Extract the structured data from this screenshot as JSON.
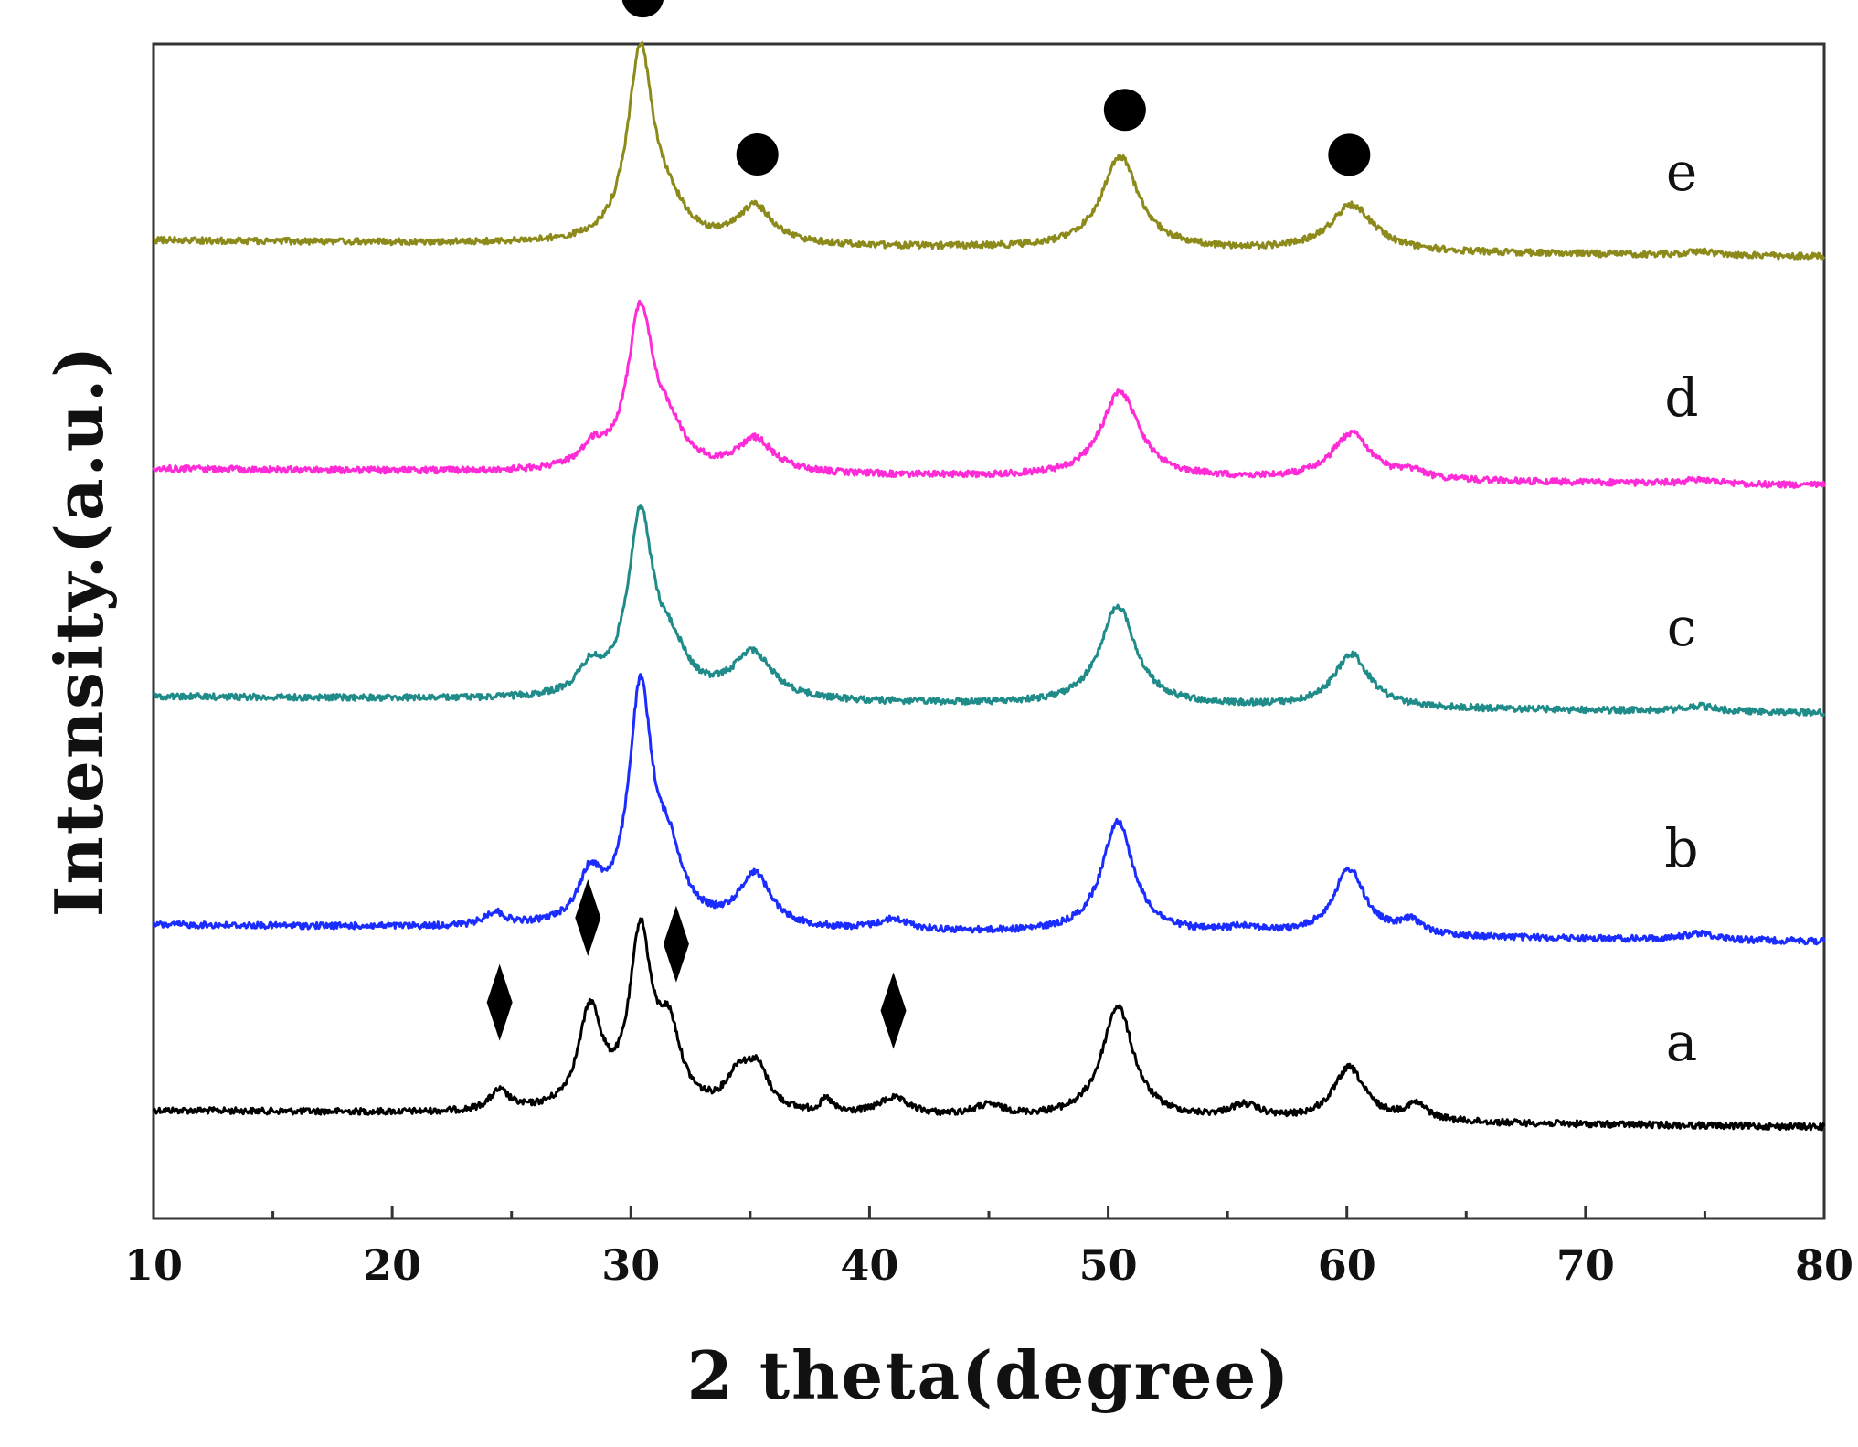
{
  "chart_data": {
    "type": "line",
    "xlabel": "2 theta(degree)",
    "ylabel": "Intensity.(a.u.)",
    "xlim": [
      10,
      80
    ],
    "xticks": [
      "10",
      "20",
      "30",
      "40",
      "50",
      "60",
      "70",
      "80"
    ],
    "grid": false,
    "legend": "none",
    "series": [
      {
        "name": "a",
        "color": "#000000",
        "baseline": 0.0,
        "peaks": [
          [
            24.5,
            0.015,
            0.5
          ],
          [
            28.3,
            0.075,
            0.6
          ],
          [
            30.4,
            0.13,
            0.55
          ],
          [
            31.6,
            0.055,
            0.6
          ],
          [
            34.5,
            0.025,
            0.6
          ],
          [
            35.3,
            0.03,
            0.6
          ],
          [
            38.2,
            0.01,
            0.3
          ],
          [
            41.0,
            0.013,
            0.8
          ],
          [
            45.0,
            0.008,
            0.8
          ],
          [
            50.4,
            0.085,
            0.8
          ],
          [
            55.7,
            0.01,
            0.8
          ],
          [
            60.1,
            0.04,
            0.8
          ],
          [
            62.9,
            0.012,
            0.6
          ]
        ]
      },
      {
        "name": "b",
        "color": "#1a2cff",
        "baseline": 1.0,
        "peaks": [
          [
            24.3,
            0.01,
            0.5
          ],
          [
            28.3,
            0.035,
            0.6
          ],
          [
            30.4,
            0.175,
            0.6
          ],
          [
            31.6,
            0.045,
            0.7
          ],
          [
            35.2,
            0.04,
            0.8
          ],
          [
            41.0,
            0.008,
            0.8
          ],
          [
            50.4,
            0.085,
            0.8
          ],
          [
            55.7,
            0.005,
            0.8
          ],
          [
            60.1,
            0.05,
            0.8
          ],
          [
            62.7,
            0.01,
            0.6
          ],
          [
            74.8,
            0.005,
            0.8
          ]
        ]
      },
      {
        "name": "c",
        "color": "#1f8c8a",
        "baseline": 2.0,
        "peaks": [
          [
            28.3,
            0.02,
            0.6
          ],
          [
            30.4,
            0.135,
            0.65
          ],
          [
            31.7,
            0.03,
            0.8
          ],
          [
            35.1,
            0.035,
            1.0
          ],
          [
            50.4,
            0.075,
            0.9
          ],
          [
            60.2,
            0.04,
            0.9
          ],
          [
            74.8,
            0.004,
            0.8
          ]
        ]
      },
      {
        "name": "d",
        "color": "#ff2bd6",
        "baseline": 3.0,
        "peaks": [
          [
            28.4,
            0.015,
            0.6
          ],
          [
            30.4,
            0.12,
            0.65
          ],
          [
            31.6,
            0.025,
            0.8
          ],
          [
            35.2,
            0.025,
            0.9
          ],
          [
            50.5,
            0.065,
            0.95
          ],
          [
            60.2,
            0.035,
            1.0
          ],
          [
            62.8,
            0.005,
            0.6
          ],
          [
            74.8,
            0.003,
            0.8
          ]
        ]
      },
      {
        "name": "e",
        "color": "#8c8a1a",
        "baseline": 4.0,
        "peaks": [
          [
            30.4,
            0.145,
            0.65
          ],
          [
            31.6,
            0.02,
            0.8
          ],
          [
            35.2,
            0.028,
            0.9
          ],
          [
            50.5,
            0.07,
            0.95
          ],
          [
            60.2,
            0.035,
            1.1
          ],
          [
            74.8,
            0.003,
            0.8
          ]
        ]
      }
    ],
    "markers": [
      {
        "shape": "circle",
        "series": "e",
        "x": 30.5
      },
      {
        "shape": "circle",
        "series": "e",
        "x": 35.3
      },
      {
        "shape": "circle",
        "series": "e",
        "x": 50.7
      },
      {
        "shape": "circle",
        "series": "e",
        "x": 60.1
      },
      {
        "shape": "diamond",
        "series": "a",
        "x": 24.5
      },
      {
        "shape": "diamond",
        "series": "a",
        "x": 28.2
      },
      {
        "shape": "diamond",
        "series": "a",
        "x": 31.9
      },
      {
        "shape": "diamond",
        "series": "a",
        "x": 41.0
      }
    ],
    "labels": {
      "a": "a",
      "b": "b",
      "c": "c",
      "d": "d",
      "e": "e"
    }
  }
}
